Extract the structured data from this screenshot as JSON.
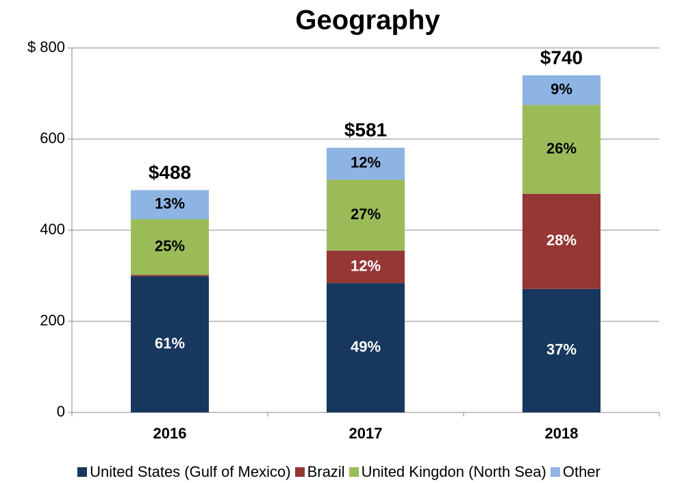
{
  "chart_data": {
    "type": "stacked_bar",
    "title": "Geography",
    "categories": [
      "2016",
      "2017",
      "2018"
    ],
    "series": [
      {
        "name": "United States (Gulf of Mexico)",
        "color": "#17375e",
        "label_color": "#ffffff",
        "values": [
          299,
          284,
          271
        ],
        "labels": [
          "61%",
          "49%",
          "37%"
        ]
      },
      {
        "name": "Brazil",
        "color": "#953735",
        "label_color": "#ffffff",
        "values": [
          3,
          71,
          209
        ],
        "labels": [
          null,
          "12%",
          "28%"
        ]
      },
      {
        "name": "United Kingdon (North Sea)",
        "color": "#9bbb59",
        "label_color": "#000000",
        "values": [
          122,
          156,
          195
        ],
        "labels": [
          "25%",
          "27%",
          "26%"
        ]
      },
      {
        "name": "Other",
        "color": "#8eb4e3",
        "label_color": "#000000",
        "values": [
          64,
          70,
          65
        ],
        "labels": [
          "13%",
          "12%",
          "9%"
        ]
      }
    ],
    "totals": [
      488,
      581,
      740
    ],
    "total_labels": [
      "$488",
      "$581",
      "$740"
    ],
    "ylim": [
      0,
      800
    ],
    "yticks": [
      0,
      200,
      400,
      600,
      {
        "value": 800,
        "label": "$ 800"
      }
    ],
    "grid": true,
    "legend": "bottom"
  }
}
